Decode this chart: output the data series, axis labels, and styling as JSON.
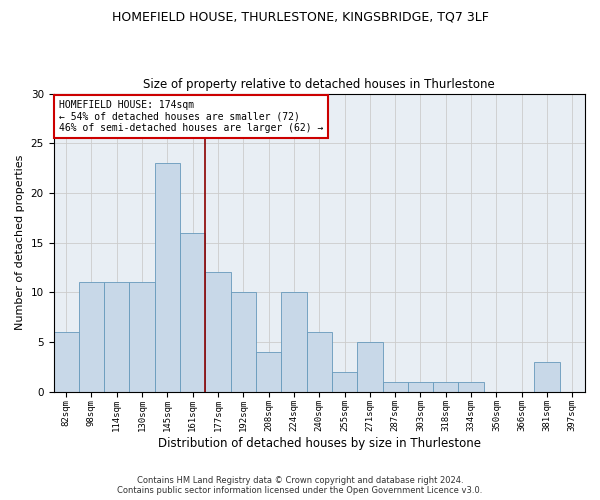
{
  "title1": "HOMEFIELD HOUSE, THURLESTONE, KINGSBRIDGE, TQ7 3LF",
  "title2": "Size of property relative to detached houses in Thurlestone",
  "xlabel": "Distribution of detached houses by size in Thurlestone",
  "ylabel": "Number of detached properties",
  "footer1": "Contains HM Land Registry data © Crown copyright and database right 2024.",
  "footer2": "Contains public sector information licensed under the Open Government Licence v3.0.",
  "categories": [
    "82sqm",
    "98sqm",
    "114sqm",
    "130sqm",
    "145sqm",
    "161sqm",
    "177sqm",
    "192sqm",
    "208sqm",
    "224sqm",
    "240sqm",
    "255sqm",
    "271sqm",
    "287sqm",
    "303sqm",
    "318sqm",
    "334sqm",
    "350sqm",
    "366sqm",
    "381sqm",
    "397sqm"
  ],
  "bar_values": [
    6,
    11,
    11,
    11,
    23,
    16,
    12,
    10,
    4,
    10,
    6,
    2,
    5,
    1,
    1,
    1,
    1,
    0,
    0,
    3,
    0
  ],
  "bar_color": "#c8d8e8",
  "bar_edge_color": "#6699bb",
  "grid_color": "#cccccc",
  "vline_x": 5.5,
  "vline_color": "#8b0000",
  "annotation_text": "HOMEFIELD HOUSE: 174sqm\n← 54% of detached houses are smaller (72)\n46% of semi-detached houses are larger (62) →",
  "annotation_box_color": "white",
  "annotation_box_edge": "#cc0000",
  "ylim": [
    0,
    30
  ],
  "yticks": [
    0,
    5,
    10,
    15,
    20,
    25,
    30
  ],
  "bg_color": "#e8eef4",
  "title_fontsize": 9,
  "subtitle_fontsize": 8.5,
  "ylabel_fontsize": 8,
  "xlabel_fontsize": 8.5
}
